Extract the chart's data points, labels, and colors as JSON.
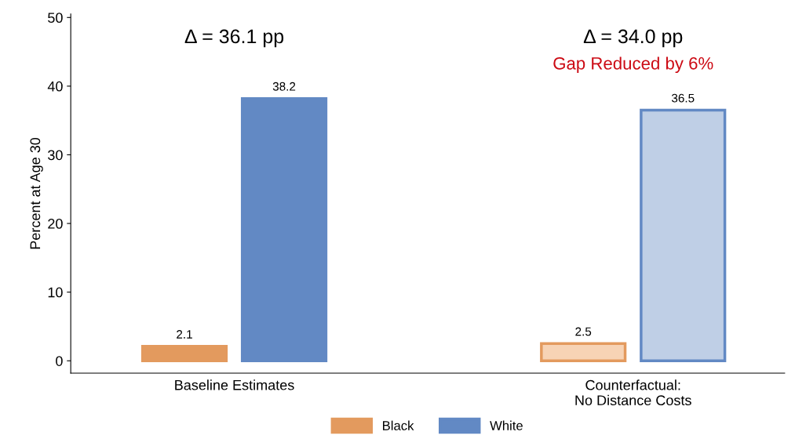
{
  "chart_data": {
    "type": "bar",
    "ylabel": "Percent at Age 30",
    "categories": [
      "Baseline Estimates",
      "Counterfactual:\nNo Distance Costs"
    ],
    "series": [
      {
        "name": "Black",
        "color": "#e39a5e",
        "colors": [
          "#e39a5e",
          "#f7d3b5"
        ],
        "values": [
          2.1,
          2.5
        ]
      },
      {
        "name": "White",
        "color": "#6289c4",
        "colors": [
          "#6289c4",
          "#bfcfe6"
        ],
        "values": [
          38.2,
          36.5
        ]
      }
    ],
    "ylim": [
      -1.8,
      50.5
    ],
    "yticks": [
      0,
      10,
      20,
      30,
      40,
      50
    ],
    "data_labels": true,
    "grid": false,
    "legend": "bottom",
    "annotations": [
      "Δ = 36.1 pp",
      "Δ = 34.0 pp",
      "Gap Reduced by 6%"
    ]
  }
}
